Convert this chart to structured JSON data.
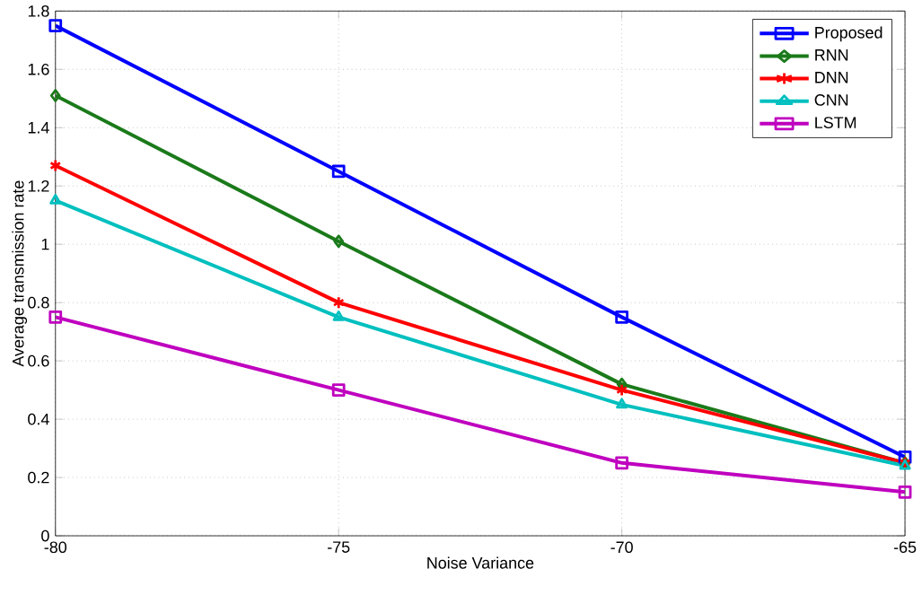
{
  "chart_data": {
    "type": "line",
    "xlabel": "Noise Variance",
    "ylabel": "Average transmission rate",
    "x": [
      -80,
      -75,
      -70,
      -65
    ],
    "series": [
      {
        "name": "Proposed",
        "color": "#0000ff",
        "marker": "square",
        "values": [
          1.75,
          1.25,
          0.75,
          0.27
        ]
      },
      {
        "name": "RNN",
        "color": "#1a7a1a",
        "marker": "diamond",
        "values": [
          1.51,
          1.01,
          0.52,
          0.25
        ]
      },
      {
        "name": "DNN",
        "color": "#ff0000",
        "marker": "cross",
        "values": [
          1.27,
          0.8,
          0.5,
          0.25
        ]
      },
      {
        "name": "CNN",
        "color": "#00bfbf",
        "marker": "triangle",
        "values": [
          1.15,
          0.75,
          0.45,
          0.24
        ]
      },
      {
        "name": "LSTM",
        "color": "#bf00bf",
        "marker": "square",
        "values": [
          0.75,
          0.5,
          0.25,
          0.15
        ]
      }
    ],
    "xlim": [
      -80,
      -65
    ],
    "xticks": [
      -80,
      -75,
      -70,
      -65
    ],
    "ylim": [
      0,
      1.8
    ],
    "yticks": [
      0,
      0.2,
      0.4,
      0.6,
      0.8,
      1,
      1.2,
      1.4,
      1.6,
      1.8
    ],
    "grid": true,
    "legend": "top right",
    "line_style": "solid"
  }
}
